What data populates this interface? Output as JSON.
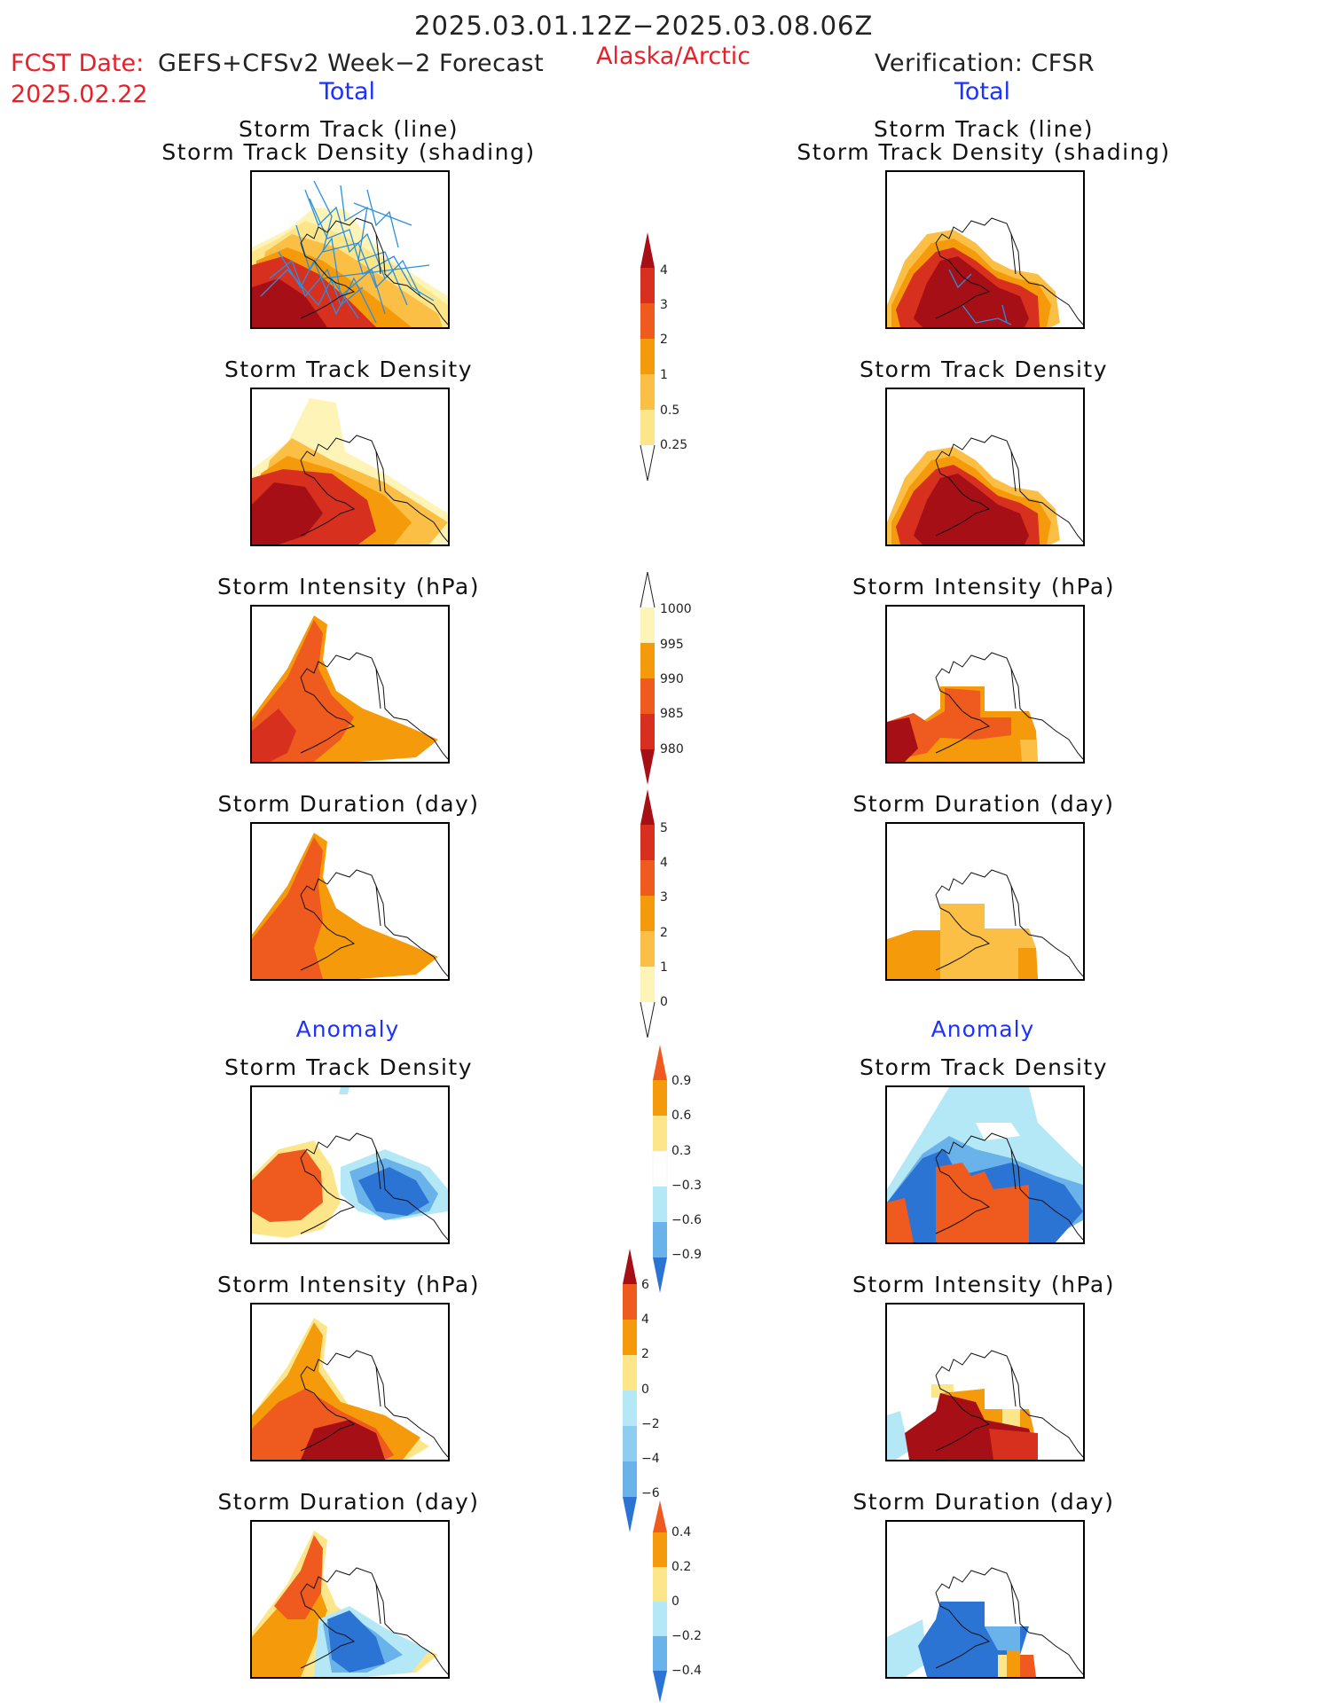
{
  "header": {
    "period": "2025.03.01.12Z−2025.03.08.06Z",
    "fcst_label": "FCST Date:",
    "fcst_model": "GEFS+CFSv2 Week−2 Forecast",
    "fcst_date": "2025.02.22",
    "region": "Alaska/Arctic",
    "verification": "Verification: CFSR",
    "total_left": "Total",
    "total_right": "Total"
  },
  "sections": {
    "anomaly_left": "Anomaly",
    "anomaly_right": "Anomaly"
  },
  "panels": {
    "track_title_1": "Storm Track (line)",
    "track_title_2": "Storm Track Density (shading)",
    "density": "Storm Track Density",
    "intensity": "Storm Intensity (hPa)",
    "duration": "Storm Duration (day)"
  },
  "colorbars": {
    "density_total": {
      "labels": [
        "4",
        "3",
        "2",
        "1",
        "0.5",
        "0.25"
      ]
    },
    "intensity_total": {
      "labels": [
        "1000",
        "995",
        "990",
        "985",
        "980"
      ]
    },
    "duration_total": {
      "labels": [
        "5",
        "4",
        "3",
        "2",
        "1",
        "0"
      ]
    },
    "density_anom": {
      "labels": [
        "0.9",
        "0.6",
        "0.3",
        "−0.3",
        "−0.6",
        "−0.9"
      ]
    },
    "intensity_anom": {
      "labels": [
        "6",
        "4",
        "2",
        "0",
        "−2",
        "−4",
        "−6"
      ]
    },
    "duration_anom": {
      "labels": [
        "0.4",
        "0.2",
        "0",
        "−0.2",
        "−0.4"
      ]
    }
  },
  "colors": {
    "dark_red": "#a50f15",
    "red": "#d7301f",
    "red_orange": "#ef5a1e",
    "orange": "#f59a0b",
    "light_orange": "#fbbf45",
    "yellow": "#fde68a",
    "pale_yellow": "#fff4b8",
    "light_blue": "#b5e8f6",
    "mid_blue": "#6ab3ea",
    "blue": "#2c74d4",
    "track_line": "#2a8fe0",
    "title_red": "#e8202a",
    "title_blue": "#1e32ff"
  }
}
